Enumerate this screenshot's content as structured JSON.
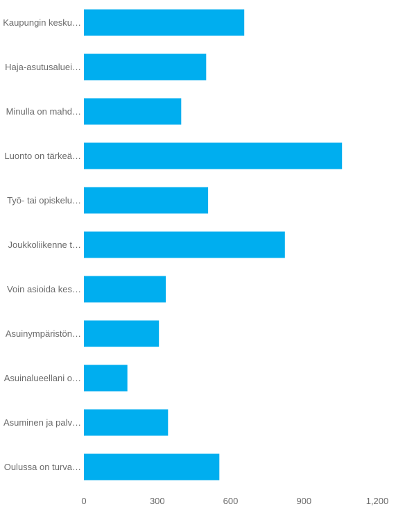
{
  "chart_data": {
    "type": "bar",
    "orientation": "horizontal",
    "categories": [
      "Kaupungin kesku…",
      "Haja-asutusaluei…",
      "Minulla on mahd…",
      "Luonto on tärkeä…",
      "Työ- tai opiskelu…",
      "Joukkoliikenne t…",
      "Voin asioida kes…",
      "Asuinympäristön…",
      "Asuinalueellani o…",
      "Asuminen ja palv…",
      "Oulussa on turva…"
    ],
    "values": [
      656,
      500,
      398,
      1056,
      508,
      822,
      335,
      307,
      178,
      344,
      554
    ],
    "xlim": [
      0,
      1200
    ],
    "x_ticks": [
      0,
      300,
      600,
      900,
      1200
    ],
    "x_tick_labels": [
      "0",
      "300",
      "600",
      "900",
      "1,200"
    ],
    "title": "",
    "xlabel": "",
    "ylabel": "",
    "grid": false,
    "legend": "none",
    "bar_color": "#00aeef",
    "label_color": "#6b6b6b"
  }
}
